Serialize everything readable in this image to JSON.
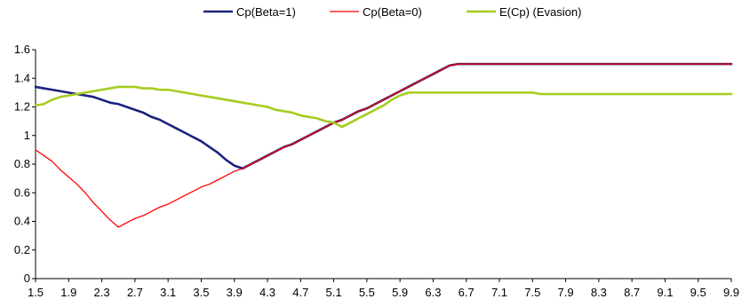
{
  "chart_data": {
    "type": "line",
    "title": "",
    "xlabel": "",
    "ylabel": "",
    "x": [
      1.5,
      1.6,
      1.7,
      1.8,
      1.9,
      2.0,
      2.1,
      2.2,
      2.3,
      2.4,
      2.5,
      2.6,
      2.7,
      2.8,
      2.9,
      3.0,
      3.1,
      3.2,
      3.3,
      3.4,
      3.5,
      3.6,
      3.7,
      3.8,
      3.9,
      4.0,
      4.1,
      4.2,
      4.3,
      4.4,
      4.5,
      4.6,
      4.7,
      4.8,
      4.9,
      5.0,
      5.1,
      5.2,
      5.3,
      5.4,
      5.5,
      5.6,
      5.7,
      5.8,
      5.9,
      6.0,
      6.1,
      6.2,
      6.3,
      6.4,
      6.5,
      6.6,
      6.7,
      6.8,
      6.9,
      7.0,
      7.1,
      7.2,
      7.3,
      7.4,
      7.5,
      7.6,
      7.7,
      7.8,
      7.9,
      8.0,
      8.1,
      8.2,
      8.3,
      8.4,
      8.5,
      8.6,
      8.7,
      8.8,
      8.9,
      9.0,
      9.1,
      9.2,
      9.3,
      9.4,
      9.5,
      9.6,
      9.7,
      9.8,
      9.9
    ],
    "x_tick_labels": [
      "1.5",
      "1.9",
      "2.3",
      "2.7",
      "3.1",
      "3.5",
      "3.9",
      "4.3",
      "4.7",
      "5.1",
      "5.5",
      "5.9",
      "6.3",
      "6.7",
      "7.1",
      "7.5",
      "7.9",
      "8.3",
      "8.7",
      "9.1",
      "9.5",
      "9.9"
    ],
    "y_tick_labels": [
      "0",
      "0.2",
      "0.4",
      "0.6",
      "0.8",
      "1",
      "1.2",
      "1.4",
      "1.6"
    ],
    "ylim": [
      0,
      1.6
    ],
    "grid": false,
    "legend_position": "top",
    "series": [
      {
        "name": "Cp(Beta=1)",
        "color": "#1a237e",
        "values": [
          1.34,
          1.33,
          1.32,
          1.31,
          1.3,
          1.29,
          1.28,
          1.27,
          1.25,
          1.23,
          1.22,
          1.2,
          1.18,
          1.16,
          1.13,
          1.11,
          1.08,
          1.05,
          1.02,
          0.99,
          0.96,
          0.92,
          0.88,
          0.83,
          0.79,
          0.77,
          0.8,
          0.83,
          0.86,
          0.89,
          0.92,
          0.94,
          0.97,
          1.0,
          1.03,
          1.06,
          1.09,
          1.11,
          1.14,
          1.17,
          1.19,
          1.22,
          1.25,
          1.28,
          1.31,
          1.34,
          1.37,
          1.4,
          1.43,
          1.46,
          1.49,
          1.5,
          1.5,
          1.5,
          1.5,
          1.5,
          1.5,
          1.5,
          1.5,
          1.5,
          1.5,
          1.5,
          1.5,
          1.5,
          1.5,
          1.5,
          1.5,
          1.5,
          1.5,
          1.5,
          1.5,
          1.5,
          1.5,
          1.5,
          1.5,
          1.5,
          1.5,
          1.5,
          1.5,
          1.5,
          1.5,
          1.5,
          1.5,
          1.5,
          1.5
        ]
      },
      {
        "name": "Cp(Beta=0)",
        "color": "#ff0000",
        "values": [
          0.9,
          0.86,
          0.82,
          0.76,
          0.71,
          0.66,
          0.6,
          0.53,
          0.47,
          0.41,
          0.36,
          0.39,
          0.42,
          0.44,
          0.47,
          0.5,
          0.52,
          0.55,
          0.58,
          0.61,
          0.64,
          0.66,
          0.69,
          0.72,
          0.75,
          0.77,
          0.8,
          0.83,
          0.86,
          0.89,
          0.92,
          0.94,
          0.97,
          1.0,
          1.03,
          1.06,
          1.09,
          1.11,
          1.14,
          1.17,
          1.19,
          1.22,
          1.25,
          1.28,
          1.31,
          1.34,
          1.37,
          1.4,
          1.43,
          1.46,
          1.49,
          1.5,
          1.5,
          1.5,
          1.5,
          1.5,
          1.5,
          1.5,
          1.5,
          1.5,
          1.5,
          1.5,
          1.5,
          1.5,
          1.5,
          1.5,
          1.5,
          1.5,
          1.5,
          1.5,
          1.5,
          1.5,
          1.5,
          1.5,
          1.5,
          1.5,
          1.5,
          1.5,
          1.5,
          1.5,
          1.5,
          1.5,
          1.5,
          1.5,
          1.5
        ]
      },
      {
        "name": "E(Cp) (Evasion)",
        "color": "#a6cc1f",
        "values": [
          1.21,
          1.22,
          1.25,
          1.27,
          1.28,
          1.29,
          1.3,
          1.31,
          1.32,
          1.33,
          1.34,
          1.34,
          1.34,
          1.33,
          1.33,
          1.32,
          1.32,
          1.31,
          1.3,
          1.29,
          1.28,
          1.27,
          1.26,
          1.25,
          1.24,
          1.23,
          1.22,
          1.21,
          1.2,
          1.18,
          1.17,
          1.16,
          1.14,
          1.13,
          1.12,
          1.1,
          1.09,
          1.06,
          1.09,
          1.12,
          1.15,
          1.18,
          1.21,
          1.25,
          1.28,
          1.3,
          1.3,
          1.3,
          1.3,
          1.3,
          1.3,
          1.3,
          1.3,
          1.3,
          1.3,
          1.3,
          1.3,
          1.3,
          1.3,
          1.3,
          1.3,
          1.29,
          1.29,
          1.29,
          1.29,
          1.29,
          1.29,
          1.29,
          1.29,
          1.29,
          1.29,
          1.29,
          1.29,
          1.29,
          1.29,
          1.29,
          1.29,
          1.29,
          1.29,
          1.29,
          1.29,
          1.29,
          1.29,
          1.29,
          1.29
        ]
      }
    ]
  }
}
